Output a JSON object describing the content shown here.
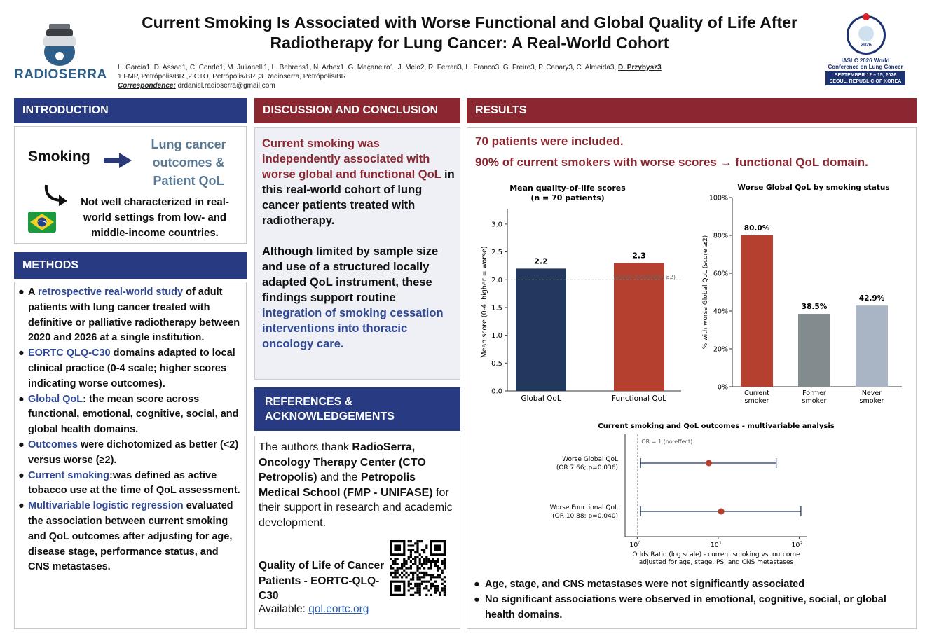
{
  "header": {
    "title_line1": "Current Smoking Is Associated with Worse Functional and Global Quality of Life After",
    "title_line2": "Radiotherapy for Lung Cancer: A Real-World Cohort",
    "authors": "L. Garcia1, D. Assad1, C. Conde1, M. Julianelli1, L. Behrens1, N. Arbex1, G. Maçaneiro1, J. Melo2, R. Ferrari3, L. Franco3, G. Freire3, P. Canary3, C. Almeida3, ",
    "authors_last": "D. Przybysz3",
    "affiliations": "1 FMP, Petrópolis/BR ,2 CTO, Petrópolis/BR ,3 Radioserra, Petrópolis/BR",
    "correspondence_label": "Correspondence:",
    "correspondence_email": " drdaniel.radioserra@gmail.com",
    "logo_text": "RADIOSERRA",
    "conference": {
      "year": "2026",
      "name_line1": "IASLC 2026 World",
      "name_line2": "Conference on Lung Cancer",
      "date_line1": "SEPTEMBER 12 – 15, 2026",
      "date_line2": "SEOUL, REPUBLIC OF KOREA"
    }
  },
  "intro": {
    "heading": "INTRODUCTION",
    "smoking": "Smoking",
    "lc_line1": "Lung cancer",
    "lc_line2": "outcomes &",
    "lc_line3": "Patient QoL",
    "notwell": "Not well characterized in real-world settings from low- and middle-income countries."
  },
  "methods": {
    "heading": "METHODS",
    "items": [
      {
        "pre": "A ",
        "hl": "retrospective real-world study",
        "post": " of adult patients with lung cancer treated with definitive or palliative radiotherapy between 2020 and 2026 at a single institution."
      },
      {
        "pre": "",
        "hl": "EORTC QLQ-C30",
        "post": " domains adapted to local clinical practice (0-4 scale; higher scores indicating worse outcomes)."
      },
      {
        "pre": "",
        "hl": "Global QoL",
        "post": ": the mean score across functional, emotional, cognitive, social, and global health domains."
      },
      {
        "pre": "",
        "hl": "Outcomes",
        "post": " were dichotomized as better (<2) versus worse (≥2)."
      },
      {
        "pre": "",
        "hl": "Current smoking",
        "post": ":was defined as active tobacco use at the time of QoL assessment."
      },
      {
        "pre": "",
        "hl": "Multivariable logistic regression",
        "post": " evaluated the association between current smoking and QoL outcomes after adjusting for age, disease stage, performance status, and CNS metastases."
      }
    ]
  },
  "discussion": {
    "heading": "DISCUSSION AND CONCLUSION",
    "p1_red": "Current smoking was independently associated with worse global and functional QoL",
    "p1_rest": " in this real-world cohort of lung cancer patients treated with radiotherapy.",
    "p2_black": "Although limited by sample size and use of a structured locally adapted QoL instrument, these findings support routine ",
    "p2_blue": "integration of smoking cessation interventions into thoracic oncology care."
  },
  "refs": {
    "heading_line1": "REFERENCES &",
    "heading_line2": "ACKNOWLEDGEMENTS",
    "t1": "The authors thank ",
    "b1": "RadioSerra, Oncology Therapy Center (CTO Petropolis)",
    "t2": " and the ",
    "b2": "Petropolis Medical School (FMP - UNIFASE)",
    "t3": " for their support in research and academic development.",
    "qol_title": "Quality of Life of Cancer Patients - EORTC-QLQ-C30",
    "avail_label": "Available: ",
    "avail_link": "qol.eortc.org"
  },
  "results": {
    "heading": "RESULTS",
    "line1": "70 patients were included.",
    "line2": "90% of current smokers with worse scores → functional QoL domain.",
    "bullets": [
      "Age, stage, and CNS metastases were not significantly associated",
      "No significant associations were observed in emotional, cognitive, social, or global health domains."
    ]
  },
  "chart_data": [
    {
      "type": "bar",
      "title": "Mean quality-of-life scores",
      "subtitle": "(n = 70 patients)",
      "categories": [
        "Global QoL",
        "Functional QoL"
      ],
      "values": [
        2.2,
        2.3
      ],
      "value_labels": [
        "2.2",
        "2.3"
      ],
      "ylabel": "Mean score (0-4, higher = worse)",
      "ylim": [
        0,
        3.2
      ],
      "yticks": [
        "0.0",
        "0.5",
        "1.0",
        "1.5",
        "2.0",
        "2.5",
        "3.0"
      ],
      "threshold": 2.0,
      "threshold_label": "'worse' threshold (≥2)",
      "colors": [
        "#22385c",
        "#b5402f"
      ]
    },
    {
      "type": "bar",
      "title": "Worse Global QoL by smoking status",
      "categories": [
        [
          "Current",
          "smoker"
        ],
        [
          "Former",
          "smoker"
        ],
        [
          "Never",
          "smoker"
        ]
      ],
      "values": [
        80.0,
        38.5,
        42.9
      ],
      "value_labels": [
        "80.0%",
        "38.5%",
        "42.9%"
      ],
      "ylabel": "% with worse Global QoL (score ≥2)",
      "ylim": [
        0,
        100
      ],
      "yticks": [
        "0%",
        "20%",
        "40%",
        "60%",
        "80%",
        "100%"
      ],
      "colors": [
        "#b5402f",
        "#828b8d",
        "#a9b4c4"
      ]
    },
    {
      "type": "scatter",
      "title": "Current smoking and QoL outcomes - multivariable analysis",
      "xlabel_line1": "Odds Ratio (log scale) - current smoking vs. outcome",
      "xlabel_line2": "adjusted for age, stage, PS, and CNS metastases",
      "xscale": "log",
      "ref_label": "OR = 1 (no effect)",
      "rows": [
        {
          "label1": "Worse Global QoL",
          "label2": "(OR 7.66; p=0.036)",
          "or": 7.66,
          "lo": 1.1,
          "hi": 52
        },
        {
          "label1": "Worse Functional QoL",
          "label2": "(OR 10.88; p=0.040)",
          "or": 10.88,
          "lo": 1.1,
          "hi": 105
        }
      ],
      "xticks": [
        {
          "base": "10",
          "exp": "0"
        },
        {
          "base": "10",
          "exp": "1"
        },
        {
          "base": "10",
          "exp": "2"
        }
      ],
      "colors": {
        "point": "#b5402f",
        "line": "#22385c"
      }
    }
  ]
}
